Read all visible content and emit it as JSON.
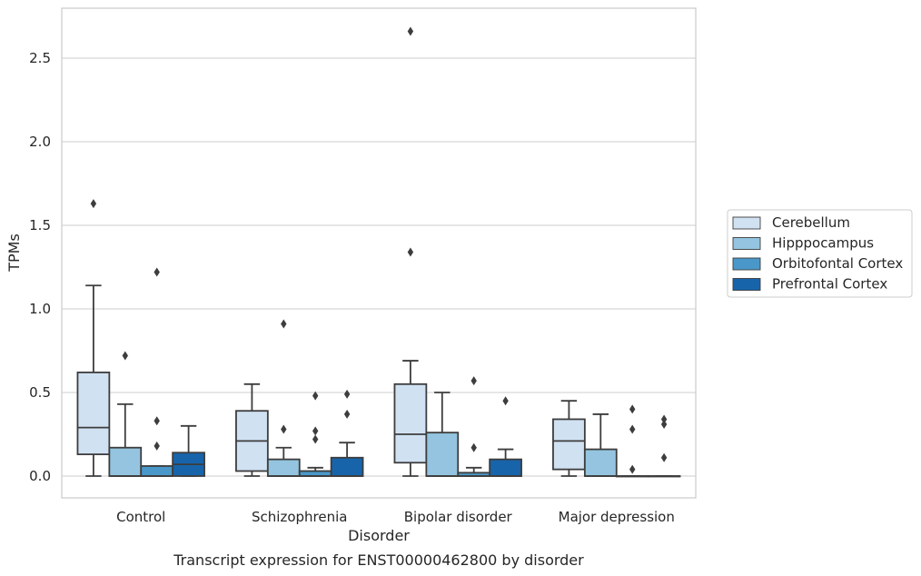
{
  "chart_data": {
    "type": "box",
    "caption": "Transcript expression for ENST00000462800 by disorder",
    "xlabel": "Disorder",
    "ylabel": "TPMs",
    "ylim": [
      -0.13,
      2.8
    ],
    "yticks": [
      0.0,
      0.5,
      1.0,
      1.5,
      2.0,
      2.5
    ],
    "ytick_labels": [
      "0.0",
      "0.5",
      "1.0",
      "1.5",
      "2.0",
      "2.5"
    ],
    "grid": "horizontal",
    "legend_position": "right",
    "categories": [
      "Control",
      "Schizophrenia",
      "Bipolar disorder",
      "Major depression"
    ],
    "series": [
      {
        "name": "Cerebellum",
        "color": "#d0e1f2",
        "boxes": [
          {
            "min": 0.0,
            "q1": 0.13,
            "median": 0.29,
            "q3": 0.62,
            "max": 1.14,
            "outliers": [
              1.63
            ]
          },
          {
            "min": 0.0,
            "q1": 0.03,
            "median": 0.21,
            "q3": 0.39,
            "max": 0.55,
            "outliers": []
          },
          {
            "min": 0.0,
            "q1": 0.08,
            "median": 0.25,
            "q3": 0.55,
            "max": 0.69,
            "outliers": [
              1.34,
              2.66
            ]
          },
          {
            "min": 0.0,
            "q1": 0.04,
            "median": 0.21,
            "q3": 0.34,
            "max": 0.45,
            "outliers": []
          }
        ]
      },
      {
        "name": "Hipppocampus",
        "color": "#94c4df",
        "boxes": [
          {
            "min": 0.0,
            "q1": 0.0,
            "median": 0.0,
            "q3": 0.17,
            "max": 0.43,
            "outliers": [
              0.72
            ]
          },
          {
            "min": 0.0,
            "q1": 0.0,
            "median": 0.0,
            "q3": 0.1,
            "max": 0.17,
            "outliers": [
              0.28,
              0.91
            ]
          },
          {
            "min": 0.0,
            "q1": 0.0,
            "median": 0.0,
            "q3": 0.26,
            "max": 0.5,
            "outliers": []
          },
          {
            "min": 0.0,
            "q1": 0.0,
            "median": 0.0,
            "q3": 0.16,
            "max": 0.37,
            "outliers": []
          }
        ]
      },
      {
        "name": "Orbitofontal Cortex",
        "color": "#4a98c9",
        "boxes": [
          {
            "min": 0.0,
            "q1": 0.0,
            "median": 0.0,
            "q3": 0.06,
            "max": 0.06,
            "outliers": [
              0.18,
              0.33,
              1.22
            ]
          },
          {
            "min": 0.0,
            "q1": 0.0,
            "median": 0.0,
            "q3": 0.03,
            "max": 0.05,
            "outliers": [
              0.22,
              0.27,
              0.48
            ]
          },
          {
            "min": 0.0,
            "q1": 0.0,
            "median": 0.0,
            "q3": 0.02,
            "max": 0.05,
            "outliers": [
              0.17,
              0.57
            ]
          },
          {
            "min": 0.0,
            "q1": 0.0,
            "median": 0.0,
            "q3": 0.0,
            "max": 0.0,
            "outliers": [
              0.04,
              0.28,
              0.4
            ]
          }
        ]
      },
      {
        "name": "Prefrontal Cortex",
        "color": "#1764ab",
        "boxes": [
          {
            "min": 0.0,
            "q1": 0.0,
            "median": 0.07,
            "q3": 0.14,
            "max": 0.3,
            "outliers": []
          },
          {
            "min": 0.0,
            "q1": 0.0,
            "median": 0.0,
            "q3": 0.11,
            "max": 0.2,
            "outliers": [
              0.37,
              0.49
            ]
          },
          {
            "min": 0.0,
            "q1": 0.0,
            "median": 0.0,
            "q3": 0.1,
            "max": 0.16,
            "outliers": [
              0.45
            ]
          },
          {
            "min": 0.0,
            "q1": 0.0,
            "median": 0.0,
            "q3": 0.0,
            "max": 0.0,
            "outliers": [
              0.11,
              0.31,
              0.34
            ]
          }
        ]
      }
    ]
  }
}
